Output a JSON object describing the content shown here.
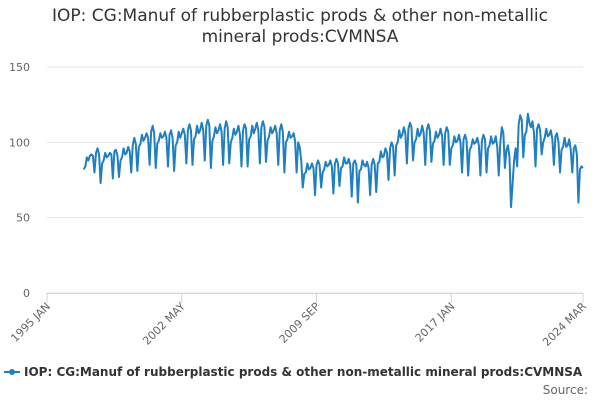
{
  "chart_data": {
    "type": "line",
    "title": "IOP: CG:Manuf of rubberplastic prods & other non-metallic mineral prods:CVMNSA",
    "source": "Source:",
    "xlim": [
      "1995 JAN",
      "2024 MAR"
    ],
    "xticks": [
      "1995 JAN",
      "2002 MAY",
      "2009 SEP",
      "2017 JAN",
      "2024 MAR"
    ],
    "ylim": [
      0,
      150
    ],
    "yticks": [
      0,
      50,
      100,
      150
    ],
    "grid": true,
    "legend": "bottom",
    "x": [
      "1997 JAN",
      "1997 FEB",
      "1997 MAR",
      "1997 APR",
      "1997 MAY",
      "1997 JUN",
      "1997 JUL",
      "1997 AUG",
      "1997 SEP",
      "1997 OCT",
      "1997 NOV",
      "1997 DEC",
      "1998 JAN",
      "1998 FEB",
      "1998 MAR",
      "1998 APR",
      "1998 MAY",
      "1998 JUN",
      "1998 JUL",
      "1998 AUG",
      "1998 SEP",
      "1998 OCT",
      "1998 NOV",
      "1998 DEC",
      "1999 JAN",
      "1999 FEB",
      "1999 MAR",
      "1999 APR",
      "1999 MAY",
      "1999 JUN",
      "1999 JUL",
      "1999 AUG",
      "1999 SEP",
      "1999 OCT",
      "1999 NOV",
      "1999 DEC",
      "2000 JAN",
      "2000 FEB",
      "2000 MAR",
      "2000 APR",
      "2000 MAY",
      "2000 JUN",
      "2000 JUL",
      "2000 AUG",
      "2000 SEP",
      "2000 OCT",
      "2000 NOV",
      "2000 DEC",
      "2001 JAN",
      "2001 FEB",
      "2001 MAR",
      "2001 APR",
      "2001 MAY",
      "2001 JUN",
      "2001 JUL",
      "2001 AUG",
      "2001 SEP",
      "2001 OCT",
      "2001 NOV",
      "2001 DEC",
      "2002 JAN",
      "2002 FEB",
      "2002 MAR",
      "2002 APR",
      "2002 MAY",
      "2002 JUN",
      "2002 JUL",
      "2002 AUG",
      "2002 SEP",
      "2002 OCT",
      "2002 NOV",
      "2002 DEC",
      "2003 JAN",
      "2003 FEB",
      "2003 MAR",
      "2003 APR",
      "2003 MAY",
      "2003 JUN",
      "2003 JUL",
      "2003 AUG",
      "2003 SEP",
      "2003 OCT",
      "2003 NOV",
      "2003 DEC",
      "2004 JAN",
      "2004 FEB",
      "2004 MAR",
      "2004 APR",
      "2004 MAY",
      "2004 JUN",
      "2004 JUL",
      "2004 AUG",
      "2004 SEP",
      "2004 OCT",
      "2004 NOV",
      "2004 DEC",
      "2005 JAN",
      "2005 FEB",
      "2005 MAR",
      "2005 APR",
      "2005 MAY",
      "2005 JUN",
      "2005 JUL",
      "2005 AUG",
      "2005 SEP",
      "2005 OCT",
      "2005 NOV",
      "2005 DEC",
      "2006 JAN",
      "2006 FEB",
      "2006 MAR",
      "2006 APR",
      "2006 MAY",
      "2006 JUN",
      "2006 JUL",
      "2006 AUG",
      "2006 SEP",
      "2006 OCT",
      "2006 NOV",
      "2006 DEC",
      "2007 JAN",
      "2007 FEB",
      "2007 MAR",
      "2007 APR",
      "2007 MAY",
      "2007 JUN",
      "2007 JUL",
      "2007 AUG",
      "2007 SEP",
      "2007 OCT",
      "2007 NOV",
      "2007 DEC",
      "2008 JAN",
      "2008 FEB",
      "2008 MAR",
      "2008 APR",
      "2008 MAY",
      "2008 JUN",
      "2008 JUL",
      "2008 AUG",
      "2008 SEP",
      "2008 OCT",
      "2008 NOV",
      "2008 DEC",
      "2009 JAN",
      "2009 FEB",
      "2009 MAR",
      "2009 APR",
      "2009 MAY",
      "2009 JUN",
      "2009 JUL",
      "2009 AUG",
      "2009 SEP",
      "2009 OCT",
      "2009 NOV",
      "2009 DEC",
      "2010 JAN",
      "2010 FEB",
      "2010 MAR",
      "2010 APR",
      "2010 MAY",
      "2010 JUN",
      "2010 JUL",
      "2010 AUG",
      "2010 SEP",
      "2010 OCT",
      "2010 NOV",
      "2010 DEC",
      "2011 JAN",
      "2011 FEB",
      "2011 MAR",
      "2011 APR",
      "2011 MAY",
      "2011 JUN",
      "2011 JUL",
      "2011 AUG",
      "2011 SEP",
      "2011 OCT",
      "2011 NOV",
      "2011 DEC",
      "2012 JAN",
      "2012 FEB",
      "2012 MAR",
      "2012 APR",
      "2012 MAY",
      "2012 JUN",
      "2012 JUL",
      "2012 AUG",
      "2012 SEP",
      "2012 OCT",
      "2012 NOV",
      "2012 DEC",
      "2013 JAN",
      "2013 FEB",
      "2013 MAR",
      "2013 APR",
      "2013 MAY",
      "2013 JUN",
      "2013 JUL",
      "2013 AUG",
      "2013 SEP",
      "2013 OCT",
      "2013 NOV",
      "2013 DEC",
      "2014 JAN",
      "2014 FEB",
      "2014 MAR",
      "2014 APR",
      "2014 MAY",
      "2014 JUN",
      "2014 JUL",
      "2014 AUG",
      "2014 SEP",
      "2014 OCT",
      "2014 NOV",
      "2014 DEC",
      "2015 JAN",
      "2015 FEB",
      "2015 MAR",
      "2015 APR",
      "2015 MAY",
      "2015 JUN",
      "2015 JUL",
      "2015 AUG",
      "2015 SEP",
      "2015 OCT",
      "2015 NOV",
      "2015 DEC",
      "2016 JAN",
      "2016 FEB",
      "2016 MAR",
      "2016 APR",
      "2016 MAY",
      "2016 JUN",
      "2016 JUL",
      "2016 AUG",
      "2016 SEP",
      "2016 OCT",
      "2016 NOV",
      "2016 DEC",
      "2017 JAN",
      "2017 FEB",
      "2017 MAR",
      "2017 APR",
      "2017 MAY",
      "2017 JUN",
      "2017 JUL",
      "2017 AUG",
      "2017 SEP",
      "2017 OCT",
      "2017 NOV",
      "2017 DEC",
      "2018 JAN",
      "2018 FEB",
      "2018 MAR",
      "2018 APR",
      "2018 MAY",
      "2018 JUN",
      "2018 JUL",
      "2018 AUG",
      "2018 SEP",
      "2018 OCT",
      "2018 NOV",
      "2018 DEC",
      "2019 JAN",
      "2019 FEB",
      "2019 MAR",
      "2019 APR",
      "2019 MAY",
      "2019 JUN",
      "2019 JUL",
      "2019 AUG",
      "2019 SEP",
      "2019 OCT",
      "2019 NOV",
      "2019 DEC",
      "2020 JAN",
      "2020 FEB",
      "2020 MAR",
      "2020 APR",
      "2020 MAY",
      "2020 JUN",
      "2020 JUL",
      "2020 AUG",
      "2020 SEP",
      "2020 OCT",
      "2020 NOV",
      "2020 DEC",
      "2021 JAN",
      "2021 FEB",
      "2021 MAR",
      "2021 APR",
      "2021 MAY",
      "2021 JUN",
      "2021 JUL",
      "2021 AUG",
      "2021 SEP",
      "2021 OCT",
      "2021 NOV",
      "2021 DEC",
      "2022 JAN",
      "2022 FEB",
      "2022 MAR",
      "2022 APR",
      "2022 MAY",
      "2022 JUN",
      "2022 JUL",
      "2022 AUG",
      "2022 SEP",
      "2022 OCT",
      "2022 NOV",
      "2022 DEC",
      "2023 JAN",
      "2023 FEB",
      "2023 MAR",
      "2023 APR",
      "2023 MAY",
      "2023 JUN",
      "2023 JUL",
      "2023 AUG",
      "2023 SEP",
      "2023 OCT",
      "2023 NOV",
      "2023 DEC",
      "2024 JAN",
      "2024 FEB",
      "2024 MAR"
    ],
    "series": [
      {
        "name": "IOP: CG:Manuf of rubberplastic prods & other non-metallic mineral prods:CVMNSA",
        "color": "#1f7fc0",
        "values": [
          82,
          84,
          90,
          88,
          91,
          92,
          91,
          80,
          93,
          96,
          92,
          73,
          86,
          88,
          93,
          90,
          91,
          93,
          92,
          76,
          94,
          95,
          91,
          77,
          88,
          90,
          96,
          92,
          93,
          97,
          94,
          80,
          98,
          103,
          99,
          81,
          97,
          99,
          105,
          101,
          103,
          106,
          103,
          85,
          107,
          111,
          106,
          83,
          99,
          101,
          106,
          103,
          104,
          107,
          103,
          84,
          105,
          108,
          103,
          81,
          98,
          100,
          107,
          103,
          106,
          109,
          105,
          86,
          108,
          112,
          108,
          85,
          102,
          104,
          111,
          106,
          108,
          113,
          108,
          88,
          111,
          115,
          111,
          83,
          101,
          104,
          110,
          106,
          108,
          112,
          107,
          85,
          109,
          114,
          110,
          86,
          100,
          103,
          109,
          105,
          107,
          111,
          105,
          84,
          108,
          112,
          109,
          84,
          102,
          104,
          111,
          106,
          109,
          113,
          108,
          86,
          110,
          114,
          110,
          87,
          101,
          104,
          110,
          106,
          108,
          111,
          106,
          85,
          108,
          112,
          107,
          80,
          100,
          102,
          107,
          103,
          104,
          106,
          101,
          80,
          100,
          97,
          88,
          70,
          79,
          80,
          86,
          82,
          83,
          86,
          83,
          65,
          85,
          88,
          85,
          70,
          80,
          82,
          87,
          84,
          85,
          88,
          84,
          66,
          86,
          89,
          86,
          71,
          83,
          84,
          90,
          86,
          86,
          89,
          85,
          64,
          86,
          88,
          85,
          60,
          81,
          82,
          88,
          85,
          84,
          87,
          83,
          65,
          85,
          89,
          85,
          67,
          86,
          87,
          94,
          90,
          91,
          96,
          93,
          75,
          96,
          100,
          97,
          78,
          98,
          100,
          108,
          103,
          105,
          110,
          106,
          86,
          109,
          113,
          110,
          88,
          100,
          102,
          109,
          104,
          106,
          111,
          106,
          85,
          108,
          112,
          108,
          87,
          99,
          101,
          107,
          103,
          105,
          109,
          104,
          85,
          106,
          110,
          107,
          85,
          96,
          98,
          104,
          100,
          101,
          105,
          100,
          80,
          102,
          105,
          101,
          78,
          95,
          97,
          102,
          99,
          100,
          103,
          98,
          78,
          101,
          105,
          102,
          80,
          96,
          98,
          104,
          99,
          100,
          104,
          97,
          78,
          100,
          110,
          106,
          83,
          95,
          98,
          90,
          57,
          72,
          88,
          96,
          84,
          112,
          118,
          115,
          90,
          105,
          107,
          119,
          113,
          110,
          114,
          106,
          84,
          109,
          112,
          108,
          92,
          100,
          103,
          109,
          104,
          105,
          108,
          102,
          85,
          104,
          106,
          100,
          80,
          95,
          97,
          103,
          97,
          98,
          102,
          95,
          80,
          96,
          98,
          92,
          60,
          82,
          84,
          83
        ]
      }
    ]
  }
}
